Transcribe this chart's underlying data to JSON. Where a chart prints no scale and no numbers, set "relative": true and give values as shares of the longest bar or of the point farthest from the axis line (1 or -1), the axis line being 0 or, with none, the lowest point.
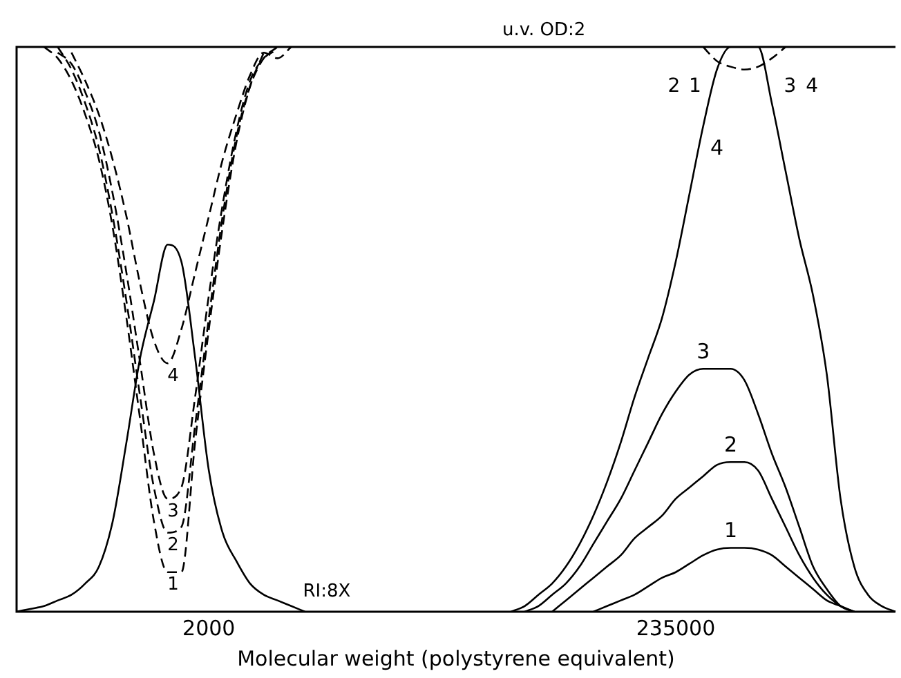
{
  "chart_data": {
    "type": "line",
    "relative": true,
    "xlabel": "Molecular weight (polystyrene equivalent)",
    "categories": [
      null,
      null,
      null,
      null,
      null,
      null,
      null,
      null,
      null,
      null,
      null,
      null,
      null,
      null,
      "2000",
      null,
      null,
      null,
      null,
      null,
      null,
      null,
      null,
      null,
      null,
      null,
      null,
      null,
      null,
      null,
      null,
      null,
      null,
      null,
      null,
      null,
      null,
      null,
      null,
      null,
      null,
      null,
      null,
      null,
      null,
      null,
      null,
      null,
      "235000",
      null,
      null,
      null,
      null,
      null,
      null,
      null,
      null,
      null,
      null,
      null,
      null,
      null,
      null,
      null,
      null
    ],
    "series": [
      {
        "color": "#000000",
        "line_style": "solid",
        "values": [
          0,
          0.005,
          0.01,
          0.02,
          0.03,
          0.05,
          0.08,
          0.16,
          0.3,
          0.45,
          0.55,
          0.65,
          0.62,
          0.45,
          0.25,
          0.14,
          0.09,
          0.05,
          0.03,
          0.02,
          0.01,
          0,
          null,
          null,
          null,
          null,
          null,
          null,
          null,
          null,
          null,
          null,
          null,
          null,
          null,
          null,
          null,
          null,
          null,
          null,
          null,
          null,
          null,
          null,
          null,
          null,
          null,
          null,
          null,
          null,
          null,
          null,
          null,
          null,
          null,
          null,
          null,
          null,
          null,
          null,
          null,
          null,
          null,
          null,
          null
        ]
      },
      {
        "name": "1",
        "color": "#000000",
        "line_style": "dashed",
        "values": [
          null,
          null,
          1,
          0.98,
          0.94,
          0.88,
          0.8,
          0.68,
          0.52,
          0.34,
          0.16,
          0.07,
          0.07,
          0.3,
          0.5,
          0.68,
          0.83,
          0.93,
          0.99,
          null,
          null,
          null,
          null,
          null,
          null,
          null,
          null,
          null,
          null,
          null,
          null,
          null,
          null,
          null,
          null,
          null,
          null,
          null,
          null,
          null,
          null,
          null,
          null,
          null,
          null,
          null,
          null,
          null,
          null,
          null,
          null,
          null,
          null,
          null,
          null,
          null,
          null,
          null,
          null,
          null,
          null,
          null,
          null,
          null,
          null
        ]
      },
      {
        "name": "2",
        "color": "#000000",
        "line_style": "dashed",
        "values": [
          null,
          null,
          null,
          1,
          0.96,
          0.9,
          0.82,
          0.7,
          0.55,
          0.38,
          0.22,
          0.14,
          0.15,
          0.33,
          0.52,
          0.7,
          0.84,
          0.93,
          0.98,
          1,
          null,
          null,
          null,
          null,
          null,
          null,
          null,
          null,
          null,
          null,
          null,
          null,
          null,
          null,
          null,
          null,
          null,
          null,
          null,
          null,
          null,
          null,
          null,
          null,
          null,
          null,
          null,
          null,
          null,
          null,
          null,
          null,
          null,
          null,
          null,
          null,
          null,
          null,
          null,
          null,
          null,
          null,
          null,
          null,
          null
        ]
      },
      {
        "name": "3",
        "color": "#000000",
        "line_style": "dashed",
        "values": [
          null,
          null,
          null,
          0.99,
          0.97,
          0.92,
          0.85,
          0.74,
          0.6,
          0.44,
          0.28,
          0.2,
          0.22,
          0.38,
          0.56,
          0.72,
          0.85,
          0.94,
          0.98,
          0.995,
          null,
          null,
          null,
          null,
          null,
          null,
          null,
          null,
          null,
          null,
          null,
          null,
          null,
          null,
          null,
          null,
          null,
          null,
          null,
          null,
          null,
          null,
          null,
          null,
          null,
          null,
          null,
          null,
          null,
          null,
          null,
          null,
          null,
          null,
          null,
          null,
          null,
          null,
          null,
          null,
          null,
          null,
          null,
          null,
          null
        ]
      },
      {
        "name": "4",
        "color": "#000000",
        "line_style": "dashed",
        "values": [
          null,
          null,
          null,
          null,
          0.99,
          0.94,
          0.88,
          0.8,
          0.7,
          0.58,
          0.48,
          0.44,
          0.5,
          0.6,
          0.7,
          0.8,
          0.88,
          0.95,
          0.99,
          0.98,
          1,
          null,
          null,
          null,
          null,
          null,
          null,
          null,
          null,
          null,
          null,
          null,
          null,
          null,
          null,
          null,
          null,
          null,
          null,
          null,
          null,
          null,
          null,
          null,
          null,
          null,
          null,
          null,
          null,
          null,
          null,
          null,
          null,
          null,
          null,
          null,
          null,
          null,
          null,
          null,
          null,
          null,
          null,
          null,
          null
        ]
      },
      {
        "name": "4",
        "color": "#000000",
        "line_style": "solid",
        "values": [
          null,
          null,
          null,
          null,
          null,
          null,
          null,
          null,
          null,
          null,
          null,
          null,
          null,
          null,
          null,
          null,
          null,
          null,
          null,
          null,
          null,
          null,
          null,
          null,
          null,
          null,
          null,
          null,
          null,
          null,
          null,
          null,
          null,
          null,
          null,
          null,
          0,
          0.01,
          0.03,
          0.05,
          0.08,
          0.12,
          0.17,
          0.23,
          0.3,
          0.38,
          0.45,
          0.52,
          0.62,
          0.74,
          0.86,
          0.96,
          1,
          1,
          1,
          0.9,
          0.78,
          0.66,
          0.56,
          0.42,
          0.2,
          0.08,
          0.03,
          0.01,
          0
        ]
      },
      {
        "name": "3",
        "color": "#000000",
        "line_style": "solid",
        "values": [
          null,
          null,
          null,
          null,
          null,
          null,
          null,
          null,
          null,
          null,
          null,
          null,
          null,
          null,
          null,
          null,
          null,
          null,
          null,
          null,
          null,
          null,
          null,
          null,
          null,
          null,
          null,
          null,
          null,
          null,
          null,
          null,
          null,
          null,
          null,
          null,
          null,
          0,
          0.01,
          0.03,
          0.05,
          0.08,
          0.12,
          0.16,
          0.2,
          0.25,
          0.3,
          0.35,
          0.39,
          0.42,
          0.43,
          0.43,
          0.43,
          0.41,
          0.35,
          0.28,
          0.22,
          0.15,
          0.08,
          0.04,
          0.01,
          0,
          null,
          null,
          null
        ]
      },
      {
        "name": "2",
        "color": "#000000",
        "line_style": "solid",
        "values": [
          null,
          null,
          null,
          null,
          null,
          null,
          null,
          null,
          null,
          null,
          null,
          null,
          null,
          null,
          null,
          null,
          null,
          null,
          null,
          null,
          null,
          null,
          null,
          null,
          null,
          null,
          null,
          null,
          null,
          null,
          null,
          null,
          null,
          null,
          null,
          null,
          null,
          null,
          null,
          0,
          0.02,
          0.04,
          0.06,
          0.08,
          0.1,
          0.13,
          0.15,
          0.17,
          0.2,
          0.22,
          0.24,
          0.26,
          0.265,
          0.265,
          0.25,
          0.2,
          0.15,
          0.1,
          0.06,
          0.03,
          0.01,
          0,
          null,
          null,
          null
        ]
      },
      {
        "name": "1",
        "color": "#000000",
        "line_style": "solid",
        "values": [
          null,
          null,
          null,
          null,
          null,
          null,
          null,
          null,
          null,
          null,
          null,
          null,
          null,
          null,
          null,
          null,
          null,
          null,
          null,
          null,
          null,
          null,
          null,
          null,
          null,
          null,
          null,
          null,
          null,
          null,
          null,
          null,
          null,
          null,
          null,
          null,
          null,
          null,
          null,
          null,
          null,
          null,
          0,
          0.01,
          0.02,
          0.03,
          0.045,
          0.06,
          0.07,
          0.085,
          0.1,
          0.11,
          0.113,
          0.113,
          0.11,
          0.1,
          0.08,
          0.06,
          0.04,
          0.02,
          0.01,
          0,
          null,
          null,
          null
        ]
      },
      {
        "color": "#000000",
        "line_style": "dashed",
        "values": [
          null,
          null,
          null,
          null,
          null,
          null,
          null,
          null,
          null,
          null,
          null,
          null,
          null,
          null,
          null,
          null,
          null,
          null,
          null,
          null,
          null,
          null,
          null,
          null,
          null,
          null,
          null,
          null,
          null,
          null,
          null,
          null,
          null,
          null,
          null,
          null,
          null,
          null,
          null,
          null,
          null,
          null,
          null,
          null,
          null,
          null,
          null,
          null,
          null,
          null,
          1,
          0.975,
          0.965,
          0.96,
          0.965,
          0.98,
          1,
          null,
          null,
          null,
          null,
          null,
          null,
          null,
          null
        ]
      }
    ],
    "annotations": [
      "u.v. OD:2",
      "RI:8X",
      "2",
      "1",
      "3",
      "4"
    ]
  }
}
